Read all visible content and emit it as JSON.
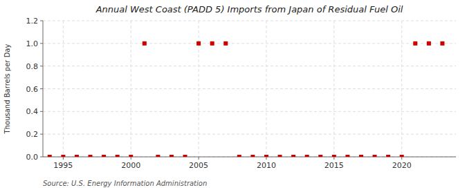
{
  "chart_data": {
    "type": "scatter",
    "title": "Annual West Coast (PADD 5) Imports from Japan of Residual Fuel Oil",
    "ylabel": "Thousand Barrels per Day",
    "source": "Source: U.S. Energy Information Administration",
    "x": [
      1994,
      1995,
      1996,
      1997,
      1998,
      1999,
      2000,
      2001,
      2002,
      2003,
      2004,
      2005,
      2006,
      2007,
      2008,
      2009,
      2010,
      2011,
      2012,
      2013,
      2014,
      2015,
      2016,
      2017,
      2018,
      2019,
      2020,
      2021,
      2022,
      2023
    ],
    "values": [
      0,
      0,
      0,
      0,
      0,
      0,
      0,
      1.0,
      0,
      0,
      0,
      1.0,
      1.0,
      1.0,
      0,
      0,
      0,
      0,
      0,
      0,
      0,
      0,
      0,
      0,
      0,
      0,
      0,
      1.0,
      1.0,
      1.0
    ],
    "color": "#cc0000",
    "marker": "square",
    "xlim": [
      1993.5,
      2024
    ],
    "xticks": [
      1995,
      2000,
      2005,
      2010,
      2015,
      2020
    ],
    "ylim": [
      0.0,
      1.2
    ],
    "yticks": [
      {
        "value": 0.0,
        "label": "0.0"
      },
      0.2,
      0.4,
      0.6,
      0.8,
      {
        "value": 1.0,
        "label": "1.0"
      },
      1.2
    ],
    "grid": true
  }
}
